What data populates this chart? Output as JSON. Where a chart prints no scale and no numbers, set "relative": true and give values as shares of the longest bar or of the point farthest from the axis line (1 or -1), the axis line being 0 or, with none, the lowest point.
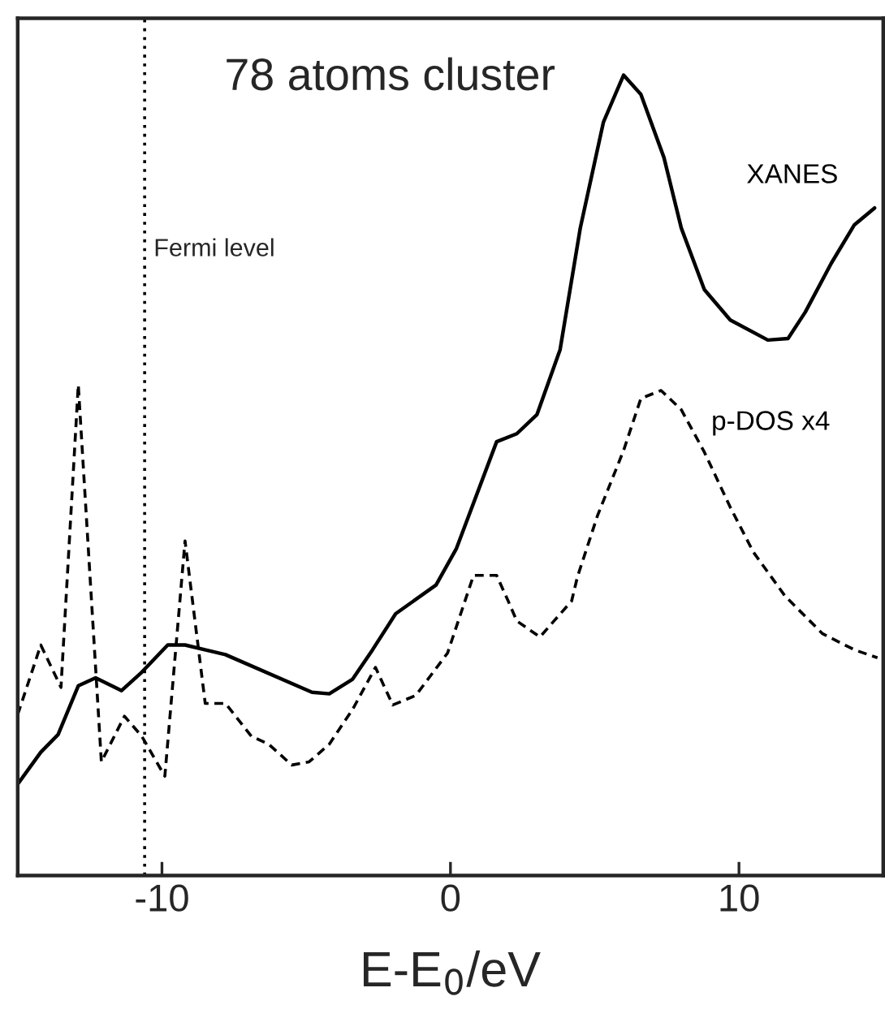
{
  "chart_data": {
    "type": "line",
    "title": "78 atoms cluster",
    "xlabel": "E-E$_{0}$/eV",
    "relative": true,
    "xlim": [
      -15,
      15
    ],
    "xticks": [
      -10,
      0,
      10
    ],
    "grid": false,
    "legend": false,
    "marker": "none",
    "ref_lines": [
      {
        "axis": "x",
        "value": -10.6,
        "label": "Fermi level",
        "line_style": "dotted",
        "color": "#000000"
      }
    ],
    "series": [
      {
        "name": "XANES",
        "color": "#000000",
        "line_style": "solid",
        "x": [
          -15,
          -14.2,
          -13.6,
          -12.9,
          -12.3,
          -11.4,
          -10.7,
          -9.8,
          -9.2,
          -7.8,
          -4.8,
          -4.2,
          -3.4,
          -2.7,
          -1.9,
          -0.5,
          0.2,
          1.6,
          2.3,
          3.0,
          3.8,
          4.5,
          5.3,
          6.0,
          6.6,
          7.4,
          8.0,
          8.8,
          9.7,
          11.0,
          11.7,
          12.3,
          13.2,
          14.0,
          14.7
        ],
        "values": [
          0.114,
          0.154,
          0.176,
          0.237,
          0.247,
          0.231,
          0.254,
          0.288,
          0.288,
          0.276,
          0.229,
          0.227,
          0.245,
          0.282,
          0.327,
          0.363,
          0.408,
          0.542,
          0.552,
          0.576,
          0.657,
          0.809,
          0.941,
          1.0,
          0.976,
          0.897,
          0.809,
          0.732,
          0.694,
          0.669,
          0.671,
          0.704,
          0.765,
          0.813,
          0.834
        ]
      },
      {
        "name": "p-DOS x4",
        "color": "#000000",
        "line_style": "dashed",
        "x": [
          -15,
          -14.2,
          -13.5,
          -12.9,
          -12.1,
          -11.3,
          -10.7,
          -9.9,
          -9.2,
          -8.5,
          -7.8,
          -6.9,
          -6.3,
          -5.5,
          -4.9,
          -4.2,
          -3.4,
          -2.6,
          -2.0,
          -1.2,
          -0.1,
          0.8,
          1.6,
          2.0,
          2.3,
          3.1,
          4.2,
          4.4,
          5.1,
          6.0,
          6.6,
          7.3,
          8.0,
          8.8,
          9.7,
          10.5,
          11.6,
          12.9,
          14.0,
          14.8
        ],
        "values": [
          0.201,
          0.288,
          0.235,
          0.613,
          0.142,
          0.199,
          0.174,
          0.124,
          0.418,
          0.215,
          0.215,
          0.174,
          0.164,
          0.138,
          0.142,
          0.164,
          0.207,
          0.26,
          0.213,
          0.225,
          0.278,
          0.375,
          0.375,
          0.343,
          0.318,
          0.298,
          0.343,
          0.373,
          0.45,
          0.531,
          0.596,
          0.606,
          0.582,
          0.529,
          0.46,
          0.404,
          0.349,
          0.302,
          0.282,
          0.272
        ]
      }
    ]
  }
}
